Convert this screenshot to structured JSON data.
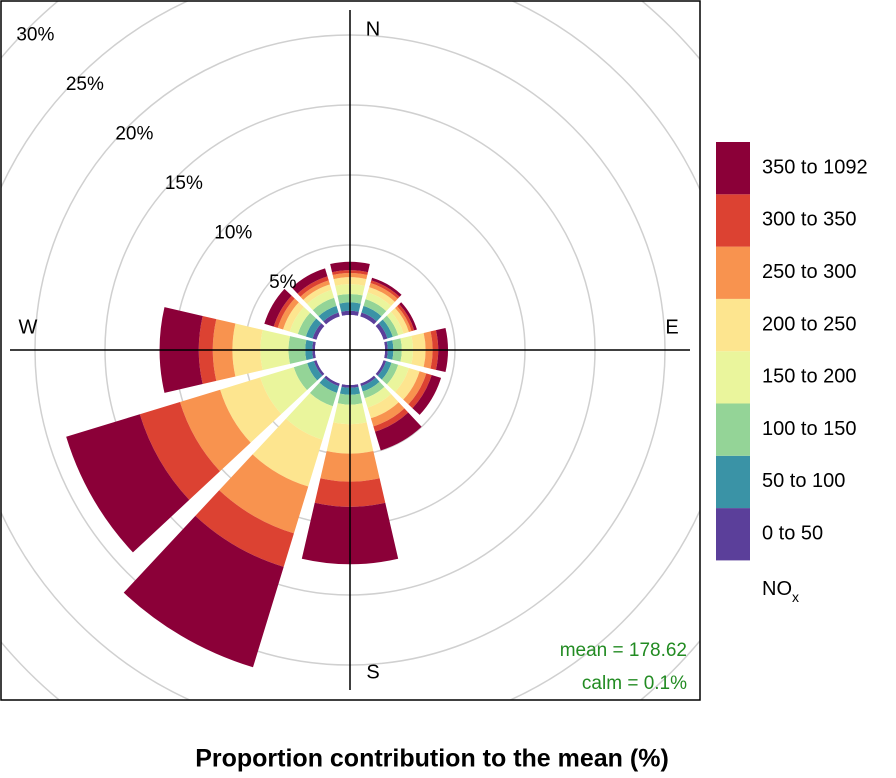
{
  "chart_data": {
    "type": "polar_stacked_bar",
    "title": "Proportion contribution to the mean (%)",
    "compass_labels": [
      "N",
      "E",
      "S",
      "W"
    ],
    "directions": [
      0,
      30,
      60,
      90,
      120,
      150,
      180,
      210,
      240,
      270,
      300,
      330
    ],
    "rlim": [
      0,
      30
    ],
    "rticks": [
      {
        "value": 5,
        "label": "5%"
      },
      {
        "value": 10,
        "label": "10%"
      },
      {
        "value": 15,
        "label": "15%"
      },
      {
        "value": 20,
        "label": "20%"
      },
      {
        "value": 25,
        "label": "25%"
      },
      {
        "value": 30,
        "label": "30%"
      }
    ],
    "grid": true,
    "legend_title": "NO",
    "legend_title_sub": "x",
    "legend_position": "right",
    "annotations": [
      "mean = 178.62",
      "calm = 0.1%"
    ],
    "series": [
      {
        "name": "0 to 50",
        "color": "#5b3f9a",
        "values": [
          0.3,
          0.3,
          0.3,
          0.2,
          0.2,
          0.2,
          0.2,
          0.2,
          0.2,
          0.2,
          0.3,
          0.3
        ]
      },
      {
        "name": "50 to 100",
        "color": "#3a93a6",
        "values": [
          0.6,
          0.5,
          0.4,
          0.4,
          0.4,
          0.4,
          0.5,
          0.5,
          0.5,
          0.5,
          0.5,
          0.5
        ]
      },
      {
        "name": "100 to 150",
        "color": "#94d497",
        "values": [
          0.6,
          0.5,
          0.4,
          0.6,
          0.5,
          0.5,
          0.7,
          1.0,
          1.0,
          1.2,
          0.6,
          0.6
        ]
      },
      {
        "name": "150 to 200",
        "color": "#eaf59c",
        "values": [
          0.7,
          0.5,
          0.4,
          0.8,
          0.8,
          0.7,
          1.4,
          2.5,
          2.5,
          2.0,
          0.6,
          0.6
        ]
      },
      {
        "name": "200 to 250",
        "color": "#fde58f",
        "values": [
          0.5,
          0.4,
          0.4,
          0.9,
          0.8,
          0.8,
          2.1,
          3.5,
          3.0,
          2.0,
          0.5,
          0.4
        ]
      },
      {
        "name": "250 to 300",
        "color": "#f8934f",
        "values": [
          0.3,
          0.3,
          0.2,
          0.5,
          0.5,
          0.6,
          2.0,
          3.5,
          3.0,
          1.4,
          0.4,
          0.3
        ]
      },
      {
        "name": "300 to 350",
        "color": "#dc4232",
        "values": [
          0.2,
          0.2,
          0.2,
          0.4,
          0.4,
          0.4,
          1.8,
          2.5,
          3.0,
          1.0,
          0.3,
          0.3
        ]
      },
      {
        "name": "350 to 1092",
        "color": "#8b0038",
        "values": [
          0.6,
          0.2,
          0.2,
          0.7,
          0.7,
          1.4,
          4.1,
          7.5,
          5.5,
          2.8,
          0.7,
          0.6
        ]
      }
    ]
  }
}
